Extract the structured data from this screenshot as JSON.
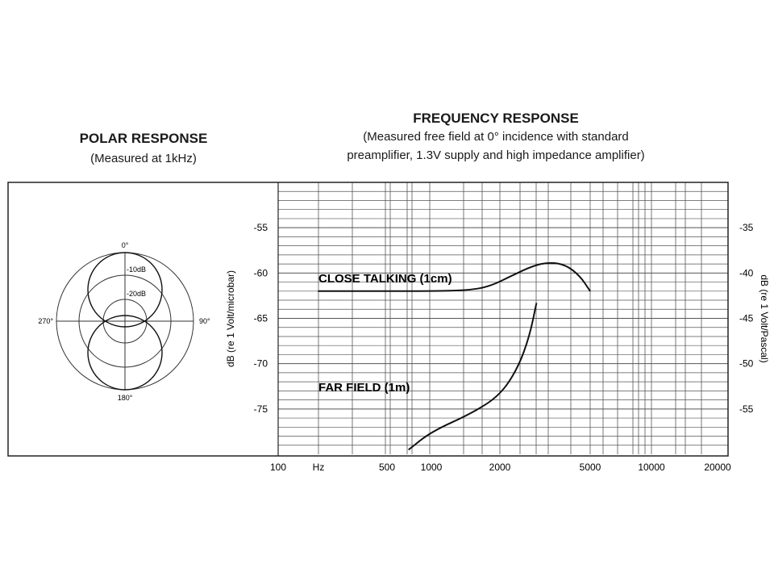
{
  "polar": {
    "title": "POLAR RESPONSE",
    "subtitle": "(Measured at 1kHz)",
    "angle_labels": {
      "top": "0°",
      "right": "90°",
      "bottom": "180°",
      "left": "270°"
    },
    "ring_labels": [
      "-10dB",
      "-20dB"
    ],
    "pattern": "figure-8"
  },
  "chart_data": {
    "type": "line",
    "title": "FREQUENCY RESPONSE",
    "subtitle_lines": [
      "(Measured free field at 0° incidence with standard",
      "preamplifier, 1.3V supply and high impedance amplifier)"
    ],
    "xlabel": "Hz",
    "x_tick_labels": [
      "100",
      "500",
      "1000",
      "2000",
      "5000",
      "10000",
      "20000"
    ],
    "ylabel": "dB (re 1 Volt/microbar)",
    "ylabel_right": "dB (re 1 Volt/Pascal)",
    "y_ticks_left": [
      -55,
      -60,
      -65,
      -70,
      -75
    ],
    "y_ticks_right": [
      -35,
      -40,
      -45,
      -50,
      -55
    ],
    "ylim": [
      -80,
      -50
    ],
    "grid": true,
    "series": [
      {
        "name": "CLOSE TALKING (1cm)",
        "x": [
          180,
          500,
          1000,
          1450,
          1800,
          2300,
          2800,
          3300,
          3900,
          4500,
          5000
        ],
        "y": [
          -62,
          -62,
          -62,
          -61.9,
          -61.5,
          -60.2,
          -59.2,
          -58.8,
          -59.1,
          -60.3,
          -62
        ]
      },
      {
        "name": "FAR FIELD (1m)",
        "x": [
          700,
          1000,
          1500,
          2000,
          2400,
          2700,
          2900
        ],
        "y": [
          -79.5,
          -77.5,
          -75.5,
          -73.5,
          -70.5,
          -67,
          -63.3
        ]
      }
    ]
  }
}
